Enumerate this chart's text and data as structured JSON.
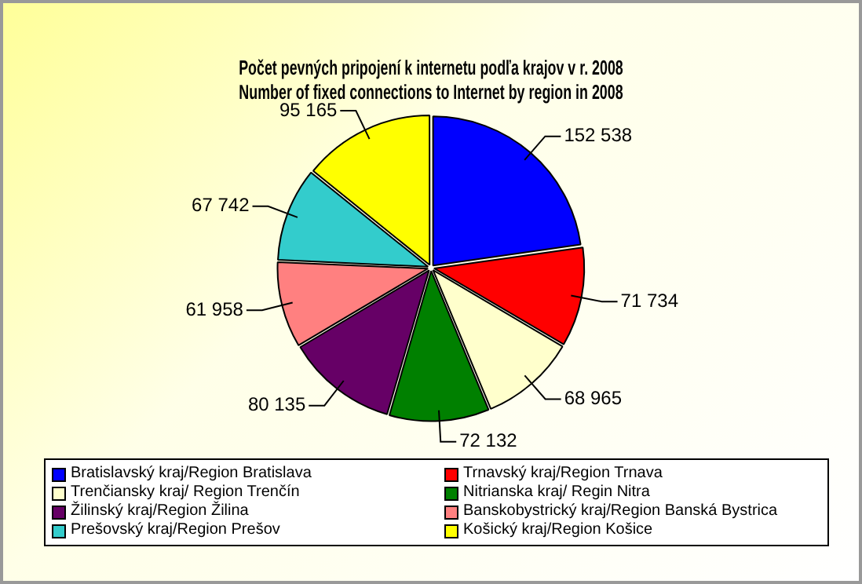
{
  "chart_data": {
    "type": "pie",
    "title": "Počet pevných pripojení k internetu podľa krajov v r. 2008\nNumber of fixed connections to Internet by region in 2008",
    "categories": [
      "Bratislavský kraj/Region Bratislava",
      "Trnavský kraj/Region Trnava",
      "Trenčiansky kraj/ Region Trenčín",
      "Nitrianska kraj/ Regin Nitra",
      "Žilinský kraj/Region Žilina",
      "Banskobystrický kraj/Region Banská Bystrica",
      "Prešovský kraj/Region Prešov",
      "Košický kraj/Region Košice"
    ],
    "values": [
      152538,
      71734,
      68965,
      72132,
      80135,
      61958,
      67742,
      95165
    ],
    "value_labels": [
      "152 538",
      "71 734",
      "68 965",
      "72 132",
      "80 135",
      "61 958",
      "67 742",
      "95 165"
    ],
    "colors": [
      "#0000ff",
      "#ff0000",
      "#ffffcc",
      "#008000",
      "#660066",
      "#ff8080",
      "#33cccc",
      "#ffff00"
    ],
    "legend": "bottom"
  }
}
